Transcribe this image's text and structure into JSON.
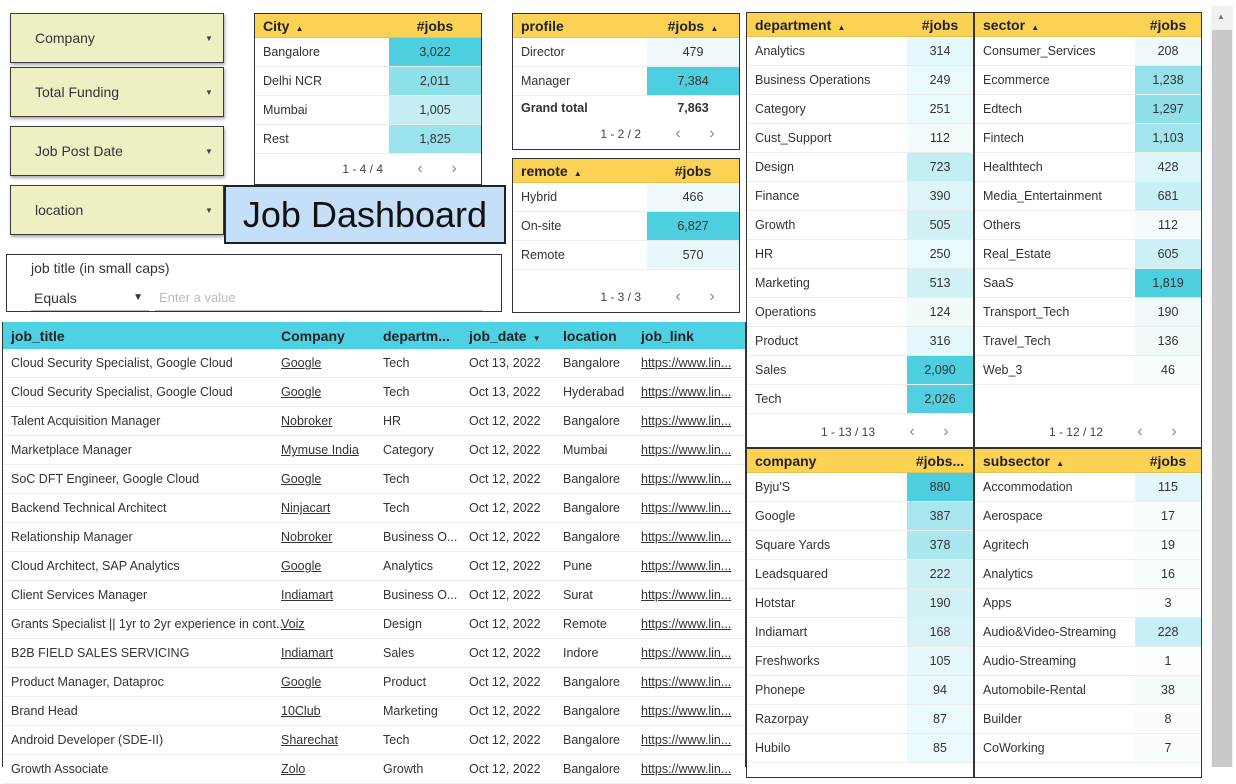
{
  "filters": {
    "company": "Company",
    "total_funding": "Total Funding",
    "job_post_date": "Job Post Date",
    "location": "location"
  },
  "title": "Job Dashboard",
  "search": {
    "caption": "job title (in small caps)",
    "operator": "Equals",
    "placeholder": "Enter a value"
  },
  "city": {
    "header": "City",
    "metric": "#jobs",
    "rows": [
      {
        "label": "Bangalore",
        "value": "3,022",
        "color": "#4dcfe0"
      },
      {
        "label": "Delhi NCR",
        "value": "2,011",
        "color": "#8ee0eb"
      },
      {
        "label": "Mumbai",
        "value": "1,005",
        "color": "#c4eef4"
      },
      {
        "label": "Rest",
        "value": "1,825",
        "color": "#9ae3ed"
      }
    ],
    "pager": "1 - 4 / 4"
  },
  "profile": {
    "header": "profile",
    "metric": "#jobs",
    "rows": [
      {
        "label": "Director",
        "value": "479",
        "color": "#eef9fb"
      },
      {
        "label": "Manager",
        "value": "7,384",
        "color": "#4dcfe0"
      }
    ],
    "total_label": "Grand total",
    "total_value": "7,863",
    "pager": "1 - 2 / 2"
  },
  "remote": {
    "header": "remote",
    "metric": "#jobs",
    "rows": [
      {
        "label": "Hybrid",
        "value": "466",
        "color": "#eef9fb"
      },
      {
        "label": "On-site",
        "value": "6,827",
        "color": "#4dcfe0"
      },
      {
        "label": "Remote",
        "value": "570",
        "color": "#e8f8fa"
      }
    ],
    "pager": "1 - 3 / 3"
  },
  "department": {
    "header": "department",
    "metric": "#jobs",
    "rows": [
      {
        "label": "Analytics",
        "value": "314",
        "color": "#e4f7fa"
      },
      {
        "label": "Business Operations",
        "value": "249",
        "color": "#eaf9fb"
      },
      {
        "label": "Category",
        "value": "251",
        "color": "#eaf9fb"
      },
      {
        "label": "Cust_Support",
        "value": "112",
        "color": "#f3fbfc"
      },
      {
        "label": "Design",
        "value": "723",
        "color": "#c2eef4"
      },
      {
        "label": "Finance",
        "value": "390",
        "color": "#ddf5f8"
      },
      {
        "label": "Growth",
        "value": "505",
        "color": "#d2f2f6"
      },
      {
        "label": "HR",
        "value": "250",
        "color": "#eaf9fb"
      },
      {
        "label": "Marketing",
        "value": "513",
        "color": "#d2f2f6"
      },
      {
        "label": "Operations",
        "value": "124",
        "color": "#f2fbfc"
      },
      {
        "label": "Product",
        "value": "316",
        "color": "#e4f7fa"
      },
      {
        "label": "Sales",
        "value": "2,090",
        "color": "#4dcfe0"
      },
      {
        "label": "Tech",
        "value": "2,026",
        "color": "#52d0e1"
      }
    ],
    "pager": "1 - 13 / 13"
  },
  "sector": {
    "header": "sector",
    "metric": "#jobs",
    "rows": [
      {
        "label": "Consumer_Services",
        "value": "208",
        "color": "#eef9fb"
      },
      {
        "label": "Ecommerce",
        "value": "1,238",
        "color": "#96e1eb"
      },
      {
        "label": "Edtech",
        "value": "1,297",
        "color": "#90e0ea"
      },
      {
        "label": "Fintech",
        "value": "1,103",
        "color": "#a2e5ee"
      },
      {
        "label": "Healthtech",
        "value": "428",
        "color": "#dcf5f8"
      },
      {
        "label": "Media_Entertainment",
        "value": "681",
        "color": "#c8eff5"
      },
      {
        "label": "Others",
        "value": "112",
        "color": "#f3fbfc"
      },
      {
        "label": "Real_Estate",
        "value": "605",
        "color": "#ccf0f5"
      },
      {
        "label": "SaaS",
        "value": "1,819",
        "color": "#4dcfe0"
      },
      {
        "label": "Transport_Tech",
        "value": "190",
        "color": "#eef9fb"
      },
      {
        "label": "Travel_Tech",
        "value": "136",
        "color": "#f2fbfc"
      },
      {
        "label": "Web_3",
        "value": "46",
        "color": "#f8fdfe"
      }
    ],
    "pager": "1 - 12 / 12"
  },
  "company": {
    "header": "company",
    "metric": "#jobs...",
    "rows": [
      {
        "label": "Byju'S",
        "value": "880",
        "color": "#4dcfe0"
      },
      {
        "label": "Google",
        "value": "387",
        "color": "#a8e6ef"
      },
      {
        "label": "Square Yards",
        "value": "378",
        "color": "#aae7ef"
      },
      {
        "label": "Leadsquared",
        "value": "222",
        "color": "#cdf0f5"
      },
      {
        "label": "Hotstar",
        "value": "190",
        "color": "#d4f2f6"
      },
      {
        "label": "Indiamart",
        "value": "168",
        "color": "#d9f4f7"
      },
      {
        "label": "Freshworks",
        "value": "105",
        "color": "#e6f8fa"
      },
      {
        "label": "Phonepe",
        "value": "94",
        "color": "#e9f8fa"
      },
      {
        "label": "Razorpay",
        "value": "87",
        "color": "#eaf9fb"
      },
      {
        "label": "Hubilo",
        "value": "85",
        "color": "#eaf9fb"
      }
    ]
  },
  "subsector": {
    "header": "subsector",
    "metric": "#jobs",
    "rows": [
      {
        "label": "Accommodation",
        "value": "115",
        "color": "#e2f6f9"
      },
      {
        "label": "Aerospace",
        "value": "17",
        "color": "#f8fdfe"
      },
      {
        "label": "Agritech",
        "value": "19",
        "color": "#f8fdfe"
      },
      {
        "label": "Analytics",
        "value": "16",
        "color": "#f8fdfe"
      },
      {
        "label": "Apps",
        "value": "3",
        "color": "#fcfeff"
      },
      {
        "label": "Audio&Video-Streaming",
        "value": "228",
        "color": "#c8eff5"
      },
      {
        "label": "Audio-Streaming",
        "value": "1",
        "color": "#fdfefe"
      },
      {
        "label": "Automobile-Rental",
        "value": "38",
        "color": "#f3fbfc"
      },
      {
        "label": "Builder",
        "value": "8",
        "color": "#fafdfe"
      },
      {
        "label": "CoWorking",
        "value": "7",
        "color": "#fafdfe"
      }
    ]
  },
  "jobs": {
    "headers": [
      "job_title",
      "Company",
      "departm...",
      "job_date",
      "location",
      "job_link"
    ],
    "sort_icon": "caret-down",
    "rows": [
      [
        "Cloud Security Specialist, Google Cloud",
        "Google",
        "Tech",
        "Oct 13, 2022",
        "Bangalore",
        "https://www.lin..."
      ],
      [
        "Cloud Security Specialist, Google Cloud",
        "Google",
        "Tech",
        "Oct 13, 2022",
        "Hyderabad",
        "https://www.lin..."
      ],
      [
        "Talent Acquisition Manager",
        "Nobroker",
        "HR",
        "Oct 12, 2022",
        "Bangalore",
        "https://www.lin..."
      ],
      [
        "Marketplace Manager",
        "Mymuse India",
        "Category",
        "Oct 12, 2022",
        "Mumbai",
        "https://www.lin..."
      ],
      [
        "SoC DFT Engineer, Google Cloud",
        "Google",
        "Tech",
        "Oct 12, 2022",
        "Bangalore",
        "https://www.lin..."
      ],
      [
        "Backend Technical Architect",
        "Ninjacart",
        "Tech",
        "Oct 12, 2022",
        "Bangalore",
        "https://www.lin..."
      ],
      [
        "Relationship Manager",
        "Nobroker",
        "Business O...",
        "Oct 12, 2022",
        "Bangalore",
        "https://www.lin..."
      ],
      [
        "Cloud Architect, SAP Analytics",
        "Google",
        "Analytics",
        "Oct 12, 2022",
        "Pune",
        "https://www.lin..."
      ],
      [
        "Client Services Manager",
        "Indiamart",
        "Business O...",
        "Oct 12, 2022",
        "Surat",
        "https://www.lin..."
      ],
      [
        "Grants Specialist || 1yr to 2yr experience in cont...",
        "Voiz",
        "Design",
        "Oct 12, 2022",
        "Remote",
        "https://www.lin..."
      ],
      [
        "B2B FIELD SALES SERVICING",
        "Indiamart",
        "Sales",
        "Oct 12, 2022",
        "Indore",
        "https://www.lin..."
      ],
      [
        "Product Manager, Dataproc",
        "Google",
        "Product",
        "Oct 12, 2022",
        "Bangalore",
        "https://www.lin..."
      ],
      [
        "Brand Head",
        "10Club",
        "Marketing",
        "Oct 12, 2022",
        "Bangalore",
        "https://www.lin..."
      ],
      [
        "Android Developer (SDE-II)",
        "Sharechat",
        "Tech",
        "Oct 12, 2022",
        "Bangalore",
        "https://www.lin..."
      ],
      [
        "Growth Associate",
        "Zolo",
        "Growth",
        "Oct 12, 2022",
        "Bangalore",
        "https://www.lin..."
      ]
    ]
  }
}
